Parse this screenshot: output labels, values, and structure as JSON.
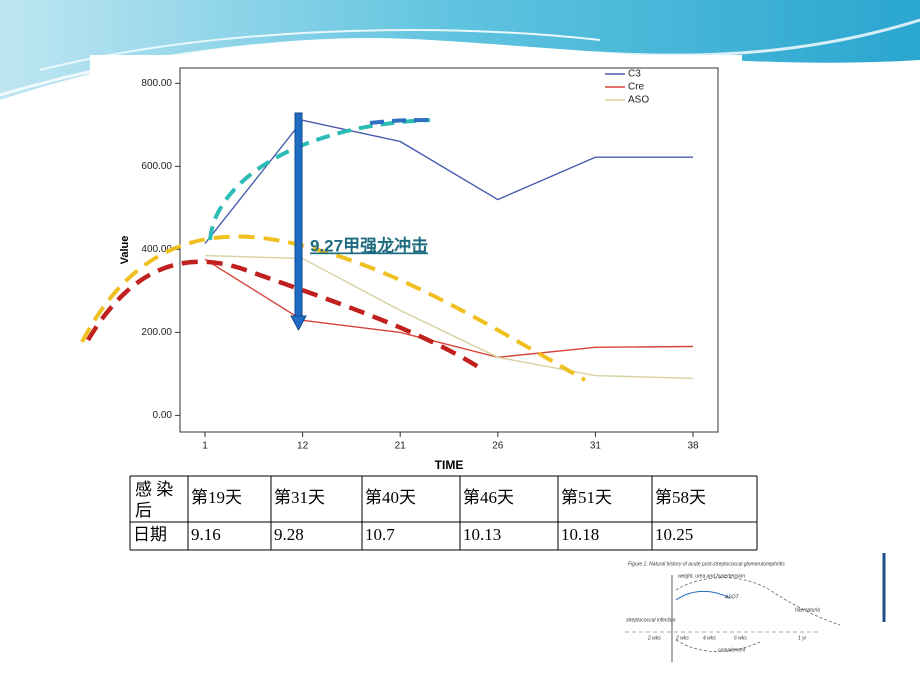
{
  "chart_data": {
    "type": "line",
    "y_label": "Value",
    "x_label": "TIME",
    "annotation": "9.27甲强龙冲击",
    "categories": [
      "1",
      "12",
      "21",
      "26",
      "31",
      "38"
    ],
    "series": [
      {
        "name": "C3",
        "color": "#4a5fb0",
        "values": [
          414,
          711,
          660,
          520,
          622,
          622
        ]
      },
      {
        "name": "Cre",
        "color": "#d9443a",
        "values": [
          376,
          229,
          200,
          140,
          164,
          166
        ]
      },
      {
        "name": "ASO",
        "color": "#d8d0a0",
        "values": [
          385,
          378,
          253,
          140,
          96,
          89
        ]
      }
    ],
    "ylim": [
      -40,
      837
    ],
    "yticks": [
      {
        "value": 0,
        "label": "0.00"
      },
      {
        "value": 200,
        "label": "200.00"
      },
      {
        "value": 400,
        "label": "400.00"
      },
      {
        "value": 600,
        "label": "600.00"
      },
      {
        "value": 800,
        "label": "800.00"
      }
    ],
    "legend": "top-right"
  },
  "table": {
    "rows": [
      [
        "感 染 后",
        "第19天",
        "第31天",
        "第40天",
        "第46天",
        "第51天",
        "第58天"
      ],
      [
        "日期",
        "9.16",
        "9.28",
        "10.7",
        "10.13",
        "10.18",
        "10.25"
      ]
    ]
  },
  "figure": {
    "title": "Figure 1. Natural history of acute post-streptococcal glomerulonephritis",
    "labels": [
      "weight, urea and hypertension",
      "ASOT",
      "haematuria",
      "streptococcal infection",
      "2 wks",
      "2 wks",
      "4 wks",
      "6 wks",
      "1 yr",
      "complement"
    ]
  }
}
